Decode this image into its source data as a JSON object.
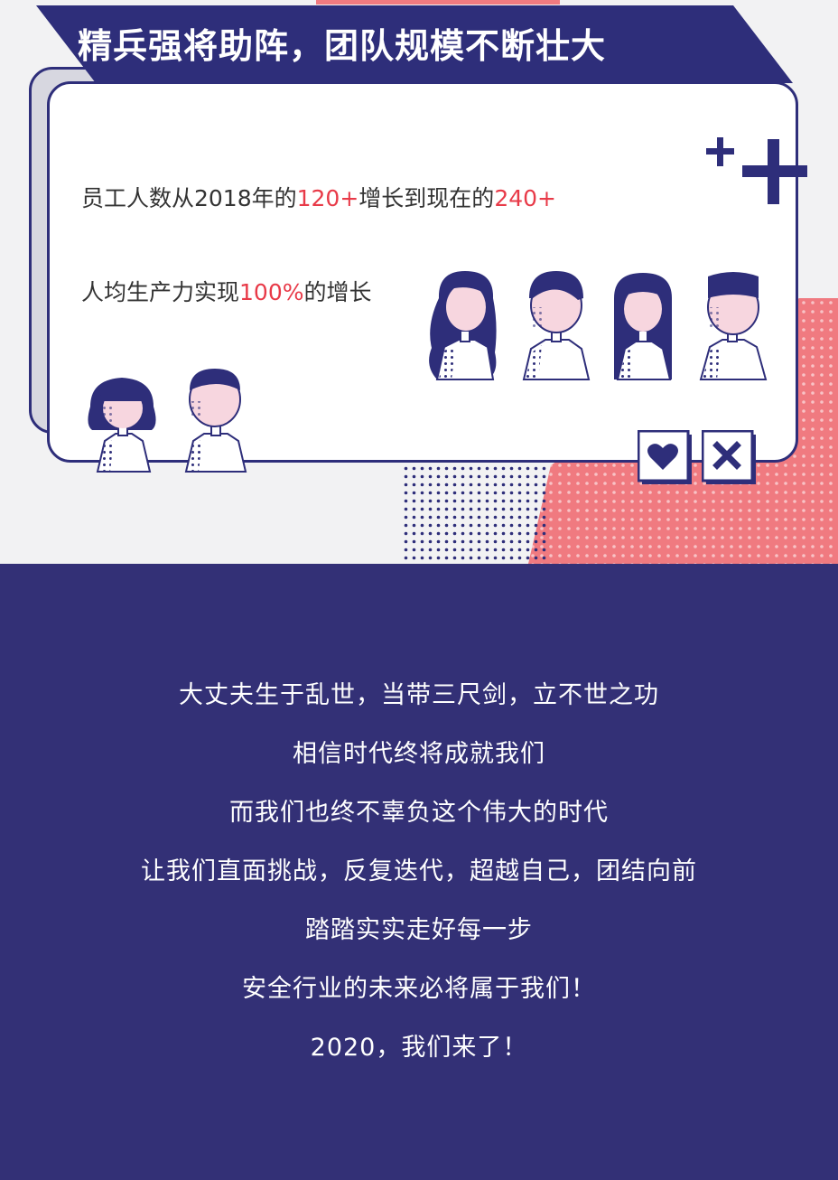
{
  "title": "精兵强将助阵，团队规模不断壮大",
  "stats": {
    "line1": {
      "prefix": "员工人数从2018年的",
      "value1": "120+",
      "middle": "增长到现在的",
      "value2": "240+"
    },
    "line2": {
      "prefix": "人均生产力实现",
      "value": "100%",
      "suffix": "的增长"
    }
  },
  "icons": [
    "plus-icon",
    "heart-icon",
    "close-icon"
  ],
  "colors": {
    "navy": "#2e2e7a",
    "navy_bg": "#333076",
    "coral": "#f07a80",
    "highlight": "#e83a48"
  },
  "poem": [
    "大丈夫生于乱世，当带三尺剑，立不世之功",
    "相信时代终将成就我们",
    "而我们也终不辜负这个伟大的时代",
    "让我们直面挑战，反复迭代，超越自己，团结向前",
    "踏踏实实走好每一步",
    "安全行业的未来必将属于我们！",
    "2020，我们来了！"
  ]
}
